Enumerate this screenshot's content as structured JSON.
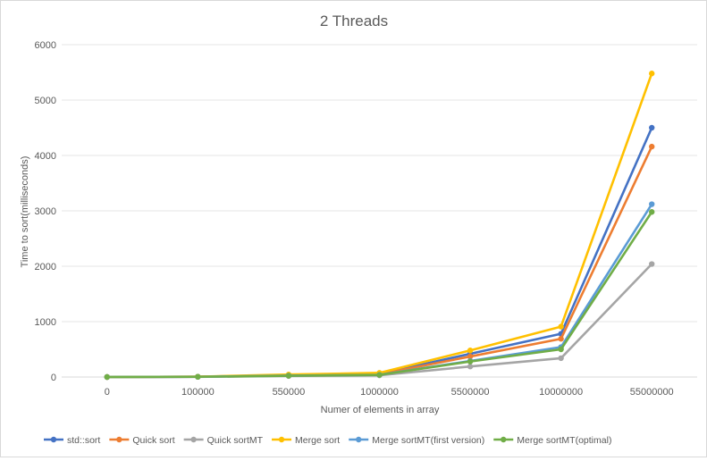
{
  "chart_data": {
    "type": "line",
    "title": "2 Threads",
    "xlabel": "Numer of elements in array",
    "ylabel": "Time to sort(milliseconds)",
    "categories": [
      "0",
      "100000",
      "550000",
      "1000000",
      "5500000",
      "10000000",
      "55000000"
    ],
    "ylim": [
      0,
      6000
    ],
    "yticks": [
      "0",
      "1000",
      "2000",
      "3000",
      "4000",
      "5000",
      "6000"
    ],
    "grid": true,
    "legend_position": "bottom",
    "series": [
      {
        "name": "std::sort",
        "color": "#4472C4",
        "values": [
          0,
          5,
          35,
          55,
          420,
          780,
          4500
        ]
      },
      {
        "name": "Quick sort",
        "color": "#ED7D31",
        "values": [
          0,
          5,
          30,
          50,
          370,
          690,
          4160
        ]
      },
      {
        "name": "Quick sortMT",
        "color": "#A5A5A5",
        "values": [
          0,
          3,
          18,
          30,
          190,
          340,
          2040
        ]
      },
      {
        "name": "Merge sort",
        "color": "#FFC000",
        "values": [
          0,
          6,
          45,
          75,
          480,
          910,
          5480
        ]
      },
      {
        "name": "Merge sortMT(first version)",
        "color": "#5B9BD5",
        "values": [
          0,
          4,
          25,
          40,
          290,
          540,
          3120
        ]
      },
      {
        "name": "Merge sortMT(optimal)",
        "color": "#70AD47",
        "values": [
          0,
          4,
          22,
          38,
          280,
          500,
          2980
        ]
      }
    ]
  }
}
